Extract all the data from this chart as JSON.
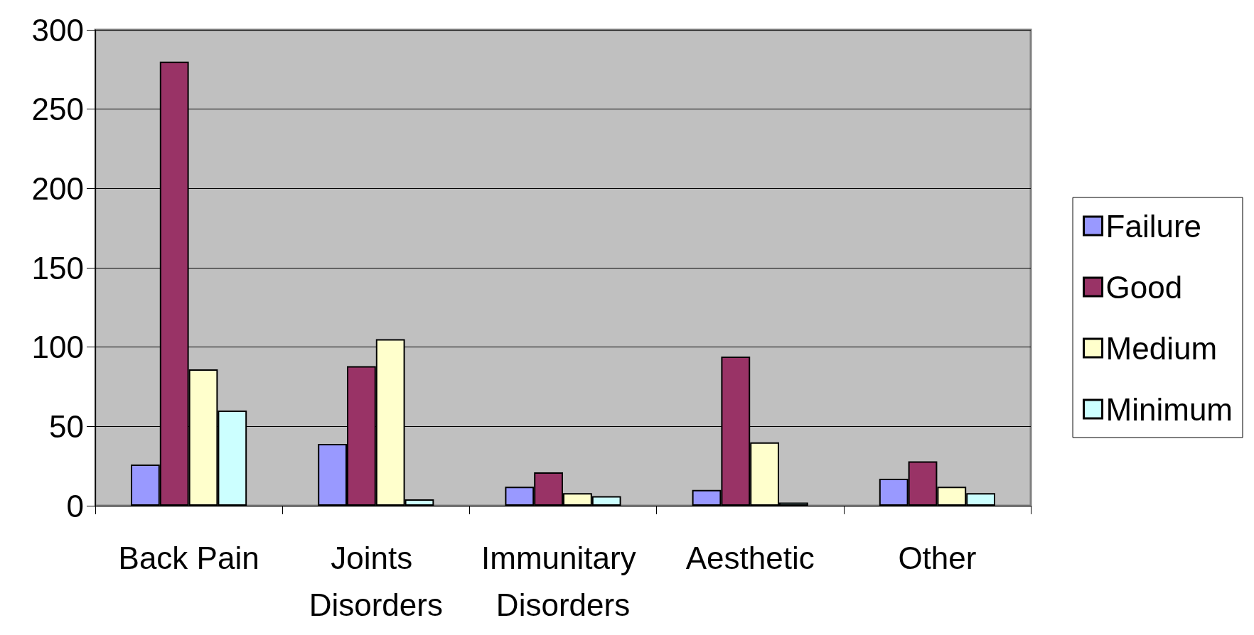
{
  "chart_data": {
    "type": "bar",
    "categories": [
      "Back Pain",
      "Joints Disorders",
      "Immunitary Disorders",
      "Aesthetic",
      "Other"
    ],
    "series": [
      {
        "name": "Failure",
        "color": "#9999ff",
        "values": [
          26,
          39,
          12,
          10,
          17
        ]
      },
      {
        "name": "Good",
        "color": "#993366",
        "values": [
          280,
          88,
          21,
          94,
          28
        ]
      },
      {
        "name": "Medium",
        "color": "#ffffcc",
        "values": [
          86,
          105,
          8,
          40,
          12
        ]
      },
      {
        "name": "Minimum",
        "color": "#ccffff",
        "values": [
          60,
          4,
          6,
          2,
          8
        ]
      }
    ],
    "ylim": [
      0,
      300
    ],
    "yticks": [
      0,
      50,
      100,
      150,
      200,
      250,
      300
    ],
    "grid": "y",
    "legend": "right"
  }
}
